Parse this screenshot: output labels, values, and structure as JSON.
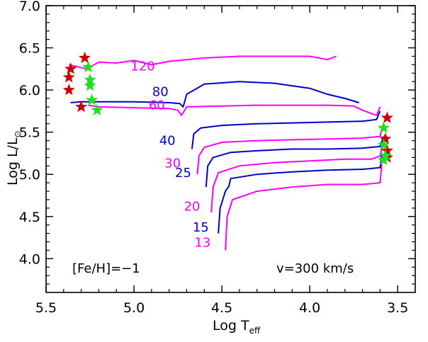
{
  "chart_data": {
    "type": "line",
    "title": "",
    "xlabel": "Log T",
    "xlabel_sub": "eff",
    "ylabel": "Log L/L",
    "ylabel_sub": "⊙",
    "xlim": [
      5.5,
      3.4
    ],
    "ylim": [
      3.6,
      7.0
    ],
    "xticks": [
      "5.5",
      "5.0",
      "4.5",
      "4.0",
      "3.5"
    ],
    "yticks": [
      "4.0",
      "4.5",
      "5.0",
      "5.5",
      "6.0",
      "6.5",
      "7.0"
    ],
    "grid": false,
    "annotations": {
      "metallicity": "[Fe/H]=−1",
      "rotation": "v=300 km/s"
    },
    "colors": {
      "magenta": "#ff00ff",
      "blue": "#0000cc",
      "red_star": "#cc0000",
      "green_star": "#22dd22"
    },
    "series": [
      {
        "name": "13",
        "color": "#ff00ff",
        "label_at": [
          4.61,
          4.14
        ],
        "points": [
          [
            4.48,
            4.1
          ],
          [
            4.47,
            4.5
          ],
          [
            4.44,
            4.7
          ],
          [
            4.3,
            4.8
          ],
          [
            4.1,
            4.85
          ],
          [
            3.9,
            4.88
          ],
          [
            3.7,
            4.88
          ],
          [
            3.6,
            4.9
          ],
          [
            3.59,
            5.15
          ]
        ]
      },
      {
        "name": "15",
        "color": "#0000cc",
        "label_at": [
          4.62,
          4.32
        ],
        "points": [
          [
            4.52,
            4.3
          ],
          [
            4.51,
            4.6
          ],
          [
            4.48,
            4.8
          ],
          [
            4.46,
            4.86
          ],
          [
            4.45,
            4.95
          ],
          [
            4.3,
            5.0
          ],
          [
            4.1,
            5.03
          ],
          [
            3.9,
            5.05
          ],
          [
            3.7,
            5.06
          ],
          [
            3.6,
            5.08
          ],
          [
            3.59,
            5.25
          ]
        ]
      },
      {
        "name": "20",
        "color": "#ff00ff",
        "label_at": [
          4.67,
          4.57
        ],
        "points": [
          [
            4.56,
            4.55
          ],
          [
            4.55,
            4.85
          ],
          [
            4.52,
            5.02
          ],
          [
            4.4,
            5.1
          ],
          [
            4.2,
            5.14
          ],
          [
            4.0,
            5.16
          ],
          [
            3.8,
            5.18
          ],
          [
            3.65,
            5.18
          ],
          [
            3.6,
            5.22
          ],
          [
            3.58,
            5.4
          ]
        ]
      },
      {
        "name": "25",
        "color": "#0000cc",
        "label_at": [
          4.72,
          4.97
        ],
        "points": [
          [
            4.59,
            4.85
          ],
          [
            4.58,
            5.1
          ],
          [
            4.55,
            5.2
          ],
          [
            4.45,
            5.26
          ],
          [
            4.3,
            5.28
          ],
          [
            4.1,
            5.3
          ],
          [
            3.9,
            5.3
          ],
          [
            3.7,
            5.31
          ],
          [
            3.6,
            5.33
          ],
          [
            3.58,
            5.45
          ]
        ]
      },
      {
        "name": "30",
        "color": "#ff00ff",
        "label_at": [
          4.78,
          5.08
        ],
        "points": [
          [
            4.64,
            5.0
          ],
          [
            4.63,
            5.22
          ],
          [
            4.6,
            5.32
          ],
          [
            4.5,
            5.38
          ],
          [
            4.3,
            5.4
          ],
          [
            4.1,
            5.41
          ],
          [
            3.9,
            5.42
          ],
          [
            3.7,
            5.43
          ],
          [
            3.6,
            5.45
          ],
          [
            3.59,
            5.55
          ]
        ]
      },
      {
        "name": "40",
        "color": "#0000cc",
        "label_at": [
          4.81,
          5.35
        ],
        "points": [
          [
            4.67,
            5.3
          ],
          [
            4.66,
            5.48
          ],
          [
            4.62,
            5.55
          ],
          [
            4.5,
            5.58
          ],
          [
            4.3,
            5.6
          ],
          [
            4.1,
            5.61
          ],
          [
            3.9,
            5.62
          ],
          [
            3.7,
            5.63
          ],
          [
            3.62,
            5.65
          ],
          [
            3.6,
            5.75
          ]
        ]
      },
      {
        "name": "60",
        "color": "#ff00ff",
        "label_at": [
          4.87,
          5.77
        ],
        "points": [
          [
            5.26,
            5.82
          ],
          [
            5.2,
            5.8
          ],
          [
            5.0,
            5.79
          ],
          [
            4.8,
            5.78
          ],
          [
            4.75,
            5.76
          ],
          [
            4.73,
            5.7
          ],
          [
            4.7,
            5.8
          ],
          [
            4.5,
            5.81
          ],
          [
            4.3,
            5.82
          ],
          [
            4.1,
            5.82
          ],
          [
            3.9,
            5.82
          ],
          [
            3.75,
            5.81
          ],
          [
            3.7,
            5.76
          ],
          [
            3.62,
            5.7
          ],
          [
            3.6,
            5.8
          ]
        ]
      },
      {
        "name": "80",
        "color": "#0000cc",
        "label_at": [
          4.85,
          5.93
        ],
        "points": [
          [
            5.36,
            5.85
          ],
          [
            5.3,
            5.86
          ],
          [
            5.2,
            5.86
          ],
          [
            5.0,
            5.86
          ],
          [
            4.8,
            5.85
          ],
          [
            4.74,
            5.84
          ],
          [
            4.72,
            5.8
          ],
          [
            4.7,
            5.95
          ],
          [
            4.6,
            6.07
          ],
          [
            4.4,
            6.1
          ],
          [
            4.2,
            6.08
          ],
          [
            4.0,
            6.02
          ],
          [
            3.9,
            5.95
          ],
          [
            3.8,
            5.9
          ],
          [
            3.72,
            5.85
          ]
        ]
      },
      {
        "name": "120",
        "color": "#ff00ff",
        "label_at": [
          4.95,
          6.23
        ],
        "points": [
          [
            5.37,
            6.3
          ],
          [
            5.33,
            6.28
          ],
          [
            5.27,
            6.25
          ],
          [
            5.2,
            6.33
          ],
          [
            5.1,
            6.32
          ],
          [
            5.0,
            6.35
          ],
          [
            4.9,
            6.3
          ],
          [
            4.8,
            6.34
          ],
          [
            4.6,
            6.38
          ],
          [
            4.4,
            6.4
          ],
          [
            4.2,
            6.4
          ],
          [
            4.0,
            6.4
          ],
          [
            3.9,
            6.36
          ],
          [
            3.85,
            6.4
          ]
        ]
      }
    ],
    "stars_red": [
      [
        5.37,
        6.0
      ],
      [
        5.37,
        6.15
      ],
      [
        5.36,
        6.25
      ],
      [
        5.28,
        6.38
      ],
      [
        5.3,
        5.8
      ],
      [
        3.56,
        5.67
      ],
      [
        3.57,
        5.42
      ],
      [
        3.56,
        5.28
      ],
      [
        3.56,
        5.2
      ]
    ],
    "stars_green": [
      [
        5.26,
        6.27
      ],
      [
        5.25,
        6.12
      ],
      [
        5.25,
        6.05
      ],
      [
        5.24,
        5.88
      ],
      [
        5.21,
        5.76
      ],
      [
        3.58,
        5.55
      ],
      [
        3.58,
        5.35
      ],
      [
        3.57,
        5.22
      ],
      [
        3.58,
        5.17
      ]
    ]
  }
}
